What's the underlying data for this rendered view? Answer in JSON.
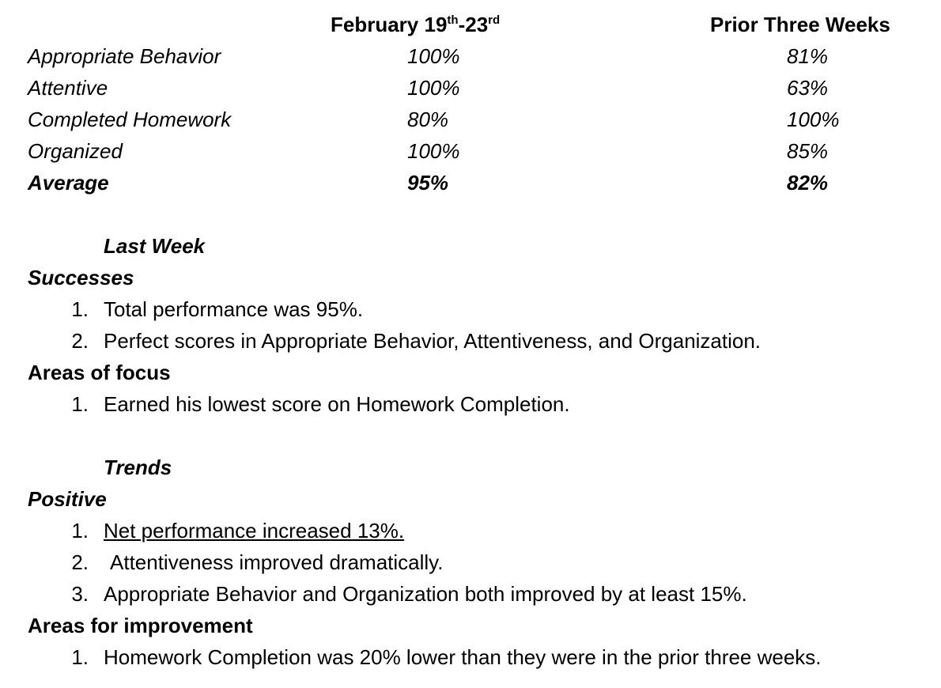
{
  "table": {
    "header": {
      "col1": {
        "main": "February 19",
        "sup1": "th",
        "mid": "-23",
        "sup2": "rd"
      },
      "col2": "Prior Three Weeks"
    },
    "rows": [
      {
        "label": "Appropriate Behavior",
        "current": "100%",
        "prior": "81%"
      },
      {
        "label": "Attentive",
        "current": "100%",
        "prior": "63%"
      },
      {
        "label": "Completed Homework",
        "current": "80%",
        "prior": "100%"
      },
      {
        "label": "Organized",
        "current": "100%",
        "prior": "85%"
      },
      {
        "label": "Average",
        "current": "95%",
        "prior": "82%"
      }
    ]
  },
  "last_week": {
    "heading": "Last Week",
    "successes": {
      "heading": "Successes",
      "items": [
        {
          "num": "1.",
          "text": "Total performance was 95%."
        },
        {
          "num": "2.",
          "text": "Perfect scores in Appropriate Behavior, Attentiveness, and Organization."
        }
      ]
    },
    "focus": {
      "heading": "Areas of focus",
      "items": [
        {
          "num": "1.",
          "text": "Earned his lowest score on Homework Completion."
        }
      ]
    }
  },
  "trends": {
    "heading": "Trends",
    "positive": {
      "heading": "Positive",
      "items": [
        {
          "num": "1.",
          "text": "Net performance increased 13%."
        },
        {
          "num": "2.",
          "text": "Attentiveness improved dramatically."
        },
        {
          "num": "3.",
          "text": "Appropriate Behavior and Organization both improved by at least 15%."
        }
      ]
    },
    "improvement": {
      "heading": "Areas for improvement",
      "items": [
        {
          "num": "1.",
          "text": "Homework Completion was 20% lower than they were in the prior three weeks."
        }
      ]
    }
  }
}
